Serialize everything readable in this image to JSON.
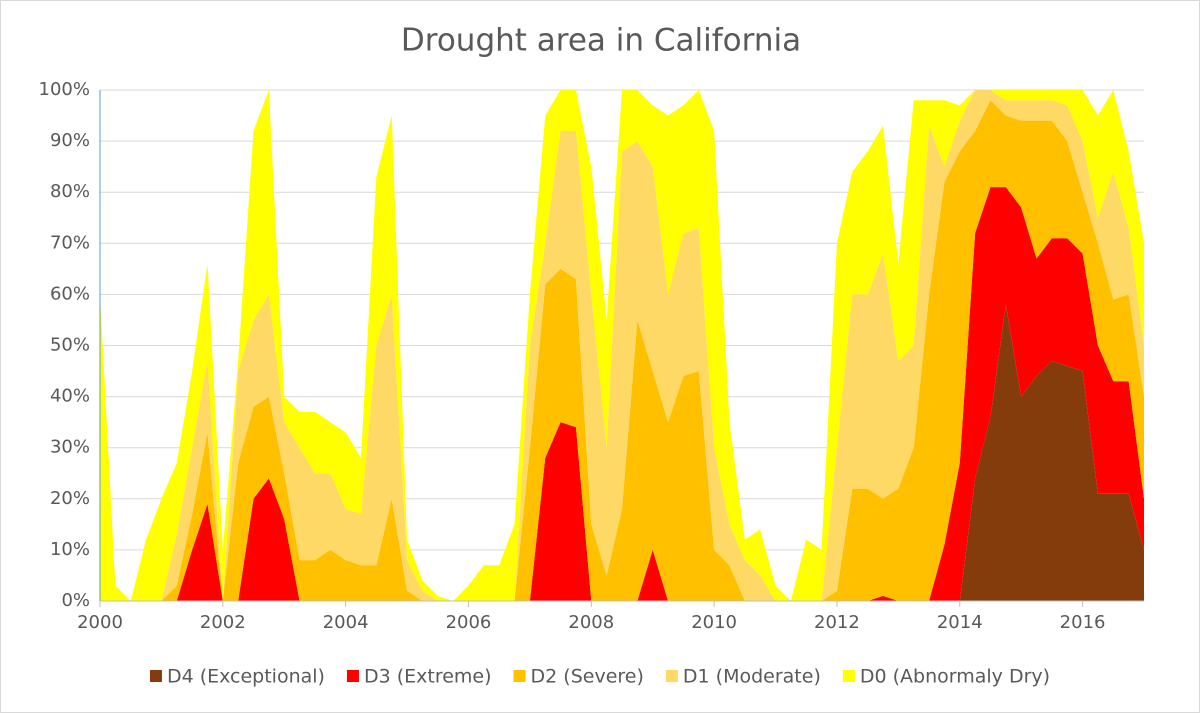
{
  "chart_data": {
    "type": "stacked-area",
    "title": "Drought area in California",
    "x": [
      2000,
      2000.25,
      2000.5,
      2000.75,
      2001,
      2001.25,
      2001.5,
      2001.75,
      2002,
      2002.25,
      2002.5,
      2002.75,
      2003,
      2003.25,
      2003.5,
      2003.75,
      2004,
      2004.25,
      2004.5,
      2004.75,
      2005,
      2005.25,
      2005.5,
      2005.75,
      2006,
      2006.25,
      2006.5,
      2006.75,
      2007,
      2007.25,
      2007.5,
      2007.75,
      2008,
      2008.25,
      2008.5,
      2008.75,
      2009,
      2009.25,
      2009.5,
      2009.75,
      2010,
      2010.25,
      2010.5,
      2010.75,
      2011,
      2011.25,
      2011.5,
      2011.75,
      2012,
      2012.25,
      2012.5,
      2012.75,
      2013,
      2013.25,
      2013.5,
      2013.75,
      2014,
      2014.25,
      2014.5,
      2014.75,
      2015,
      2015.25,
      2015.5,
      2015.75,
      2016,
      2016.25,
      2016.5,
      2016.75,
      2017
    ],
    "series": [
      {
        "name": "D4 (Exceptional)",
        "color": "#843c0c",
        "values": [
          0,
          0,
          0,
          0,
          0,
          0,
          0,
          0,
          0,
          0,
          0,
          0,
          0,
          0,
          0,
          0,
          0,
          0,
          0,
          0,
          0,
          0,
          0,
          0,
          0,
          0,
          0,
          0,
          0,
          0,
          0,
          0,
          0,
          0,
          0,
          0,
          0,
          0,
          0,
          0,
          0,
          0,
          0,
          0,
          0,
          0,
          0,
          0,
          0,
          0,
          0,
          0,
          0,
          0,
          0,
          0,
          0,
          24,
          36,
          58,
          40,
          44,
          47,
          46,
          45,
          21,
          21,
          21,
          10
        ]
      },
      {
        "name": "D3 (Extreme)",
        "color": "#ff0000",
        "values": [
          0,
          0,
          0,
          0,
          0,
          0,
          10,
          19,
          0,
          0,
          20,
          24,
          16,
          0,
          0,
          0,
          0,
          0,
          0,
          0,
          0,
          0,
          0,
          0,
          0,
          0,
          0,
          0,
          0,
          28,
          35,
          34,
          0,
          0,
          0,
          0,
          10,
          0,
          0,
          0,
          0,
          0,
          0,
          0,
          0,
          0,
          0,
          0,
          0,
          0,
          0,
          1,
          0,
          0,
          0,
          11,
          27,
          48,
          45,
          23,
          37,
          23,
          24,
          25,
          23,
          29,
          22,
          22,
          10
        ]
      },
      {
        "name": "D2 (Severe)",
        "color": "#ffc000",
        "values": [
          0,
          0,
          0,
          0,
          0,
          3,
          7,
          14,
          0,
          27,
          18,
          16,
          9,
          8,
          8,
          10,
          8,
          7,
          7,
          20,
          2,
          0,
          0,
          0,
          0,
          0,
          0,
          0,
          30,
          34,
          30,
          29,
          15,
          5,
          18,
          55,
          35,
          35,
          44,
          45,
          10,
          7,
          0,
          0,
          0,
          0,
          0,
          0,
          2,
          22,
          22,
          19,
          22,
          30,
          60,
          71,
          61,
          20,
          17,
          14,
          17,
          27,
          23,
          19,
          12,
          20,
          16,
          17,
          20
        ]
      },
      {
        "name": "D1 (Moderate)",
        "color": "#ffd966",
        "values": [
          0,
          0,
          0,
          0,
          0,
          10,
          13,
          14,
          0,
          18,
          17,
          20,
          10,
          22,
          17,
          15,
          10,
          10,
          43,
          40,
          6,
          2,
          0,
          0,
          0,
          0,
          0,
          0,
          20,
          8,
          27,
          29,
          45,
          25,
          70,
          35,
          40,
          25,
          28,
          28,
          20,
          8,
          8,
          5,
          0,
          0,
          0,
          0,
          28,
          38,
          38,
          48,
          25,
          20,
          33,
          3,
          6,
          8,
          2,
          3,
          4,
          4,
          4,
          7,
          10,
          5,
          25,
          13,
          10
        ]
      },
      {
        "name": "D0 (Abnormaly Dry)",
        "color": "#ffff00",
        "values": [
          60,
          3,
          0,
          12,
          20,
          14,
          15,
          19,
          10,
          2,
          37,
          40,
          5,
          7,
          12,
          10,
          15,
          11,
          33,
          35,
          4,
          2,
          1,
          0,
          3,
          7,
          7,
          15,
          10,
          25,
          8,
          8,
          25,
          25,
          12,
          10,
          12,
          35,
          25,
          27,
          62,
          20,
          4,
          9,
          3,
          0,
          12,
          10,
          40,
          24,
          28,
          25,
          19,
          48,
          5,
          13,
          3,
          0,
          0,
          2,
          2,
          2,
          2,
          3,
          10,
          20,
          16,
          15,
          20
        ]
      }
    ],
    "xlim": [
      2000,
      2017
    ],
    "xticks": [
      2000,
      2002,
      2004,
      2006,
      2008,
      2010,
      2012,
      2014,
      2016
    ],
    "ylim": [
      0,
      100
    ],
    "yticks": [
      {
        "value": 0,
        "label": "0%"
      },
      {
        "value": 10,
        "label": "10%"
      },
      {
        "value": 20,
        "label": "20%"
      },
      {
        "value": 30,
        "label": "30%"
      },
      {
        "value": 40,
        "label": "40%"
      },
      {
        "value": 50,
        "label": "50%"
      },
      {
        "value": 60,
        "label": "60%"
      },
      {
        "value": 70,
        "label": "70%"
      },
      {
        "value": 80,
        "label": "80%"
      },
      {
        "value": 90,
        "label": "90%"
      },
      {
        "value": 100,
        "label": "100%"
      }
    ],
    "grid": true,
    "legend": "bottom"
  }
}
